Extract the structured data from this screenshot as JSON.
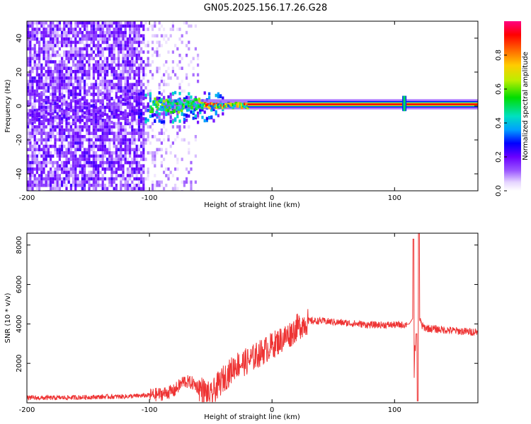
{
  "title": "GN05.2025.156.17.26.G28",
  "chart_data": [
    {
      "type": "heatmap",
      "xlabel": "Height of straight line (km)",
      "ylabel": "Frequency (Hz)",
      "xlim": [
        -200,
        168
      ],
      "ylim": [
        -50,
        50
      ],
      "xticks": [
        "-200",
        "-100",
        "0",
        "100"
      ],
      "xtick_values": [
        -200,
        -100,
        0,
        100
      ],
      "yticks": [
        "-40",
        "-20",
        "0",
        "20",
        "40"
      ],
      "ytick_values": [
        -40,
        -20,
        0,
        20,
        40
      ],
      "colorbar": {
        "label": "Normalized spectral amplitude",
        "range": [
          0,
          1
        ],
        "ticks": [
          "0.0",
          "0.2",
          "0.4",
          "0.6",
          "0.8"
        ],
        "tick_values": [
          0.0,
          0.2,
          0.4,
          0.6,
          0.8
        ],
        "colormap": [
          "#ffffff",
          "#e6d6ff",
          "#9a55ff",
          "#6a00ff",
          "#0000ff",
          "#00a0ff",
          "#00e0c0",
          "#00dd00",
          "#bbee00",
          "#ffcc00",
          "#ff6600",
          "#ff0000",
          "#ff0080"
        ]
      },
      "features": {
        "noise_region_x": [
          -200,
          -65
        ],
        "signal_line_freq_hz": 1,
        "signal_start_x": -100,
        "signal_strong_from_x": -20,
        "spike_x": 108
      }
    },
    {
      "type": "line",
      "xlabel": "Height of straight line (km)",
      "ylabel": "SNR (10 * v/v)",
      "xlim": [
        -200,
        168
      ],
      "ylim": [
        0,
        8600
      ],
      "xticks": [
        "-200",
        "-100",
        "0",
        "100"
      ],
      "xtick_values": [
        -200,
        -100,
        0,
        100
      ],
      "yticks": [
        "2000",
        "4000",
        "6000",
        "8000"
      ],
      "ytick_values": [
        2000,
        4000,
        6000,
        8000
      ],
      "color": "#ee3333",
      "series": [
        {
          "x": [
            -200,
            -180,
            -160,
            -140,
            -120,
            -100,
            -90,
            -80,
            -72,
            -65,
            -58,
            -50,
            -45,
            -40,
            -35,
            -30,
            -25,
            -20,
            -15,
            -10,
            -5,
            0,
            5,
            10,
            15,
            20,
            25,
            30,
            40,
            50,
            60,
            70,
            80,
            90,
            100,
            108,
            112,
            115,
            117,
            119,
            121,
            125,
            130,
            140,
            150,
            160,
            168
          ],
          "y": [
            250,
            250,
            270,
            300,
            320,
            380,
            450,
            600,
            1100,
            1000,
            700,
            300,
            800,
            1200,
            1500,
            1900,
            2000,
            2100,
            2300,
            2500,
            2700,
            2900,
            3100,
            3300,
            3500,
            3800,
            4000,
            4150,
            4150,
            4100,
            4050,
            4000,
            3950,
            3950,
            3950,
            3950,
            4000,
            4300,
            1500,
            8200,
            3950,
            3800,
            3750,
            3700,
            3650,
            3600,
            3600
          ]
        }
      ]
    }
  ]
}
